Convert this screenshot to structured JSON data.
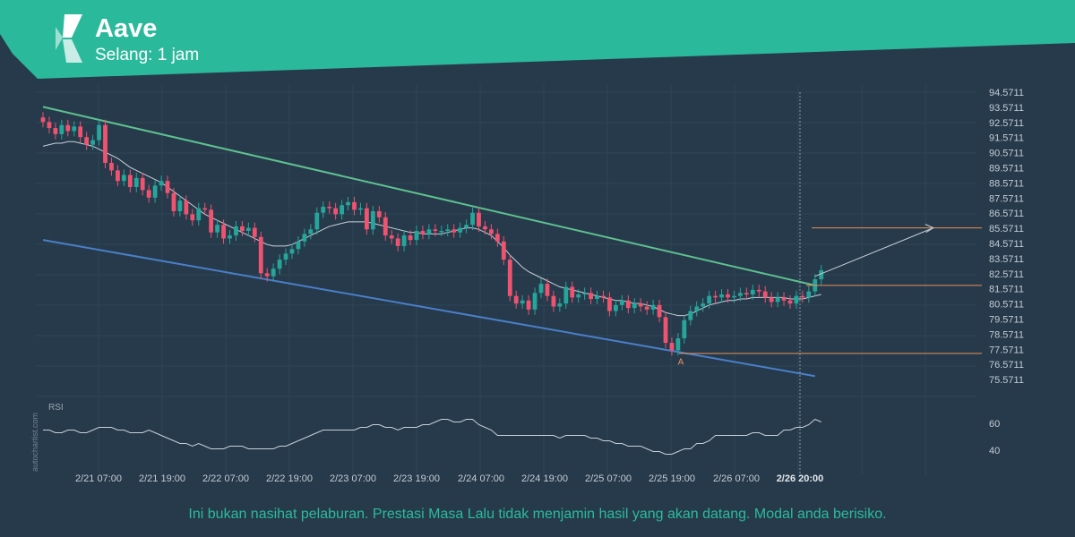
{
  "header": {
    "title": "Aave",
    "subtitle": "Selang: 1 jam",
    "accent_color": "#2bb99b",
    "logo_icon": "autochartist-logo-icon"
  },
  "disclaimer": "Ini bukan nasihat pelaburan. Prestasi Masa Lalu tidak menjamin hasil yang akan datang. Modal anda berisiko.",
  "watermark": "autochartist.com",
  "chart_data": {
    "type": "candlestick",
    "x_labels": [
      "2/21 07:00",
      "2/21 19:00",
      "2/22 07:00",
      "2/22 19:00",
      "2/23 07:00",
      "2/23 19:00",
      "2/24 07:00",
      "2/24 19:00",
      "2/25 07:00",
      "2/25 19:00",
      "2/26 07:00",
      "2/26 20:00"
    ],
    "y_ticks": [
      "94.5711",
      "93.5711",
      "92.5711",
      "91.5711",
      "90.5711",
      "89.5711",
      "88.5711",
      "87.5711",
      "86.5711",
      "85.5711",
      "84.5711",
      "83.5711",
      "82.5711",
      "81.5711",
      "80.5711",
      "79.5711",
      "78.5711",
      "77.5711",
      "76.5711",
      "75.5711"
    ],
    "ylim": [
      75.0,
      95.0
    ],
    "up_color": "#26a69a",
    "down_color": "#ef5370",
    "close": [
      92.6,
      92.2,
      91.8,
      92.4,
      92.0,
      92.3,
      91.6,
      91.1,
      91.4,
      92.4,
      89.9,
      89.4,
      88.7,
      89.1,
      88.3,
      88.9,
      88.1,
      87.6,
      88.4,
      88.7,
      87.9,
      86.7,
      87.4,
      86.5,
      86.1,
      86.9,
      86.8,
      85.3,
      85.8,
      84.9,
      85.1,
      85.7,
      85.4,
      85.6,
      85.0,
      82.6,
      82.4,
      82.9,
      83.5,
      83.9,
      84.2,
      84.7,
      85.2,
      85.5,
      86.6,
      87.0,
      86.9,
      86.5,
      87.1,
      87.3,
      86.8,
      86.9,
      85.5,
      86.7,
      86.3,
      85.1,
      84.9,
      84.4,
      85.1,
      84.8,
      85.4,
      85.2,
      85.5,
      85.4,
      85.4,
      85.5,
      85.3,
      85.6,
      85.8,
      86.6,
      85.7,
      85.5,
      85.2,
      84.7,
      83.5,
      81.1,
      80.6,
      80.8,
      80.2,
      81.3,
      81.9,
      81.1,
      80.4,
      80.6,
      81.7,
      81.0,
      81.2,
      81.3,
      80.9,
      81.1,
      81.0,
      80.1,
      80.5,
      80.8,
      80.3,
      80.6,
      80.4,
      80.2,
      80.5,
      79.7,
      78.0,
      77.5,
      78.3,
      79.5,
      80.1,
      80.4,
      80.6,
      81.1,
      81.0,
      81.2,
      81.0,
      81.1,
      81.3,
      81.2,
      81.5,
      81.4,
      81.0,
      80.7,
      81.0,
      80.8,
      80.6,
      81.1,
      81.0,
      81.4,
      82.2,
      82.8
    ],
    "sma": [
      91.0,
      91.1,
      91.2,
      91.2,
      91.3,
      91.3,
      91.2,
      91.1,
      91.0,
      90.8,
      90.6,
      90.4,
      90.2,
      89.9,
      89.6,
      89.4,
      89.2,
      89.0,
      88.8,
      88.6,
      88.3,
      88.0,
      87.7,
      87.4,
      87.1,
      86.8,
      86.5,
      86.3,
      86.1,
      85.9,
      85.7,
      85.5,
      85.3,
      85.1,
      84.9,
      84.7,
      84.5,
      84.4,
      84.4,
      84.4,
      84.5,
      84.7,
      84.9,
      85.1,
      85.3,
      85.5,
      85.7,
      85.8,
      85.9,
      86.0,
      86.0,
      86.0,
      86.0,
      85.9,
      85.8,
      85.7,
      85.6,
      85.5,
      85.4,
      85.3,
      85.3,
      85.2,
      85.2,
      85.2,
      85.2,
      85.3,
      85.4,
      85.5,
      85.6,
      85.6,
      85.5,
      85.3,
      85.1,
      84.7,
      84.3,
      83.8,
      83.4,
      83.0,
      82.7,
      82.5,
      82.3,
      82.1,
      81.9,
      81.7,
      81.6,
      81.5,
      81.4,
      81.3,
      81.2,
      81.1,
      81.0,
      80.9,
      80.8,
      80.8,
      80.7,
      80.6,
      80.6,
      80.5,
      80.4,
      80.2,
      80.0,
      79.9,
      79.8,
      79.8,
      79.9,
      80.1,
      80.3,
      80.5,
      80.6,
      80.7,
      80.8,
      80.8,
      80.9,
      80.9,
      81.0,
      81.0,
      81.0,
      81.0,
      81.0,
      81.0,
      80.9,
      80.9,
      80.9,
      81.0,
      81.1,
      81.2
    ],
    "resistance": {
      "from": [
        0,
        93.6
      ],
      "to": [
        124,
        81.8
      ]
    },
    "support": {
      "from": [
        0,
        84.8
      ],
      "to": [
        124,
        75.8
      ]
    },
    "levels": [
      {
        "value": 85.6,
        "color": "#e8915a"
      },
      {
        "value": 81.8,
        "color": "#e8915a"
      },
      {
        "value": 77.3,
        "color": "#e8915a"
      }
    ],
    "projection": {
      "from": [
        124,
        82.4
      ],
      "to": [
        143,
        85.6
      ]
    },
    "pattern_point_label": "A",
    "rsi": {
      "label": "RSI",
      "ticks": [
        "60",
        "40"
      ],
      "ylim": [
        30,
        70
      ],
      "values": [
        55,
        55,
        53,
        53,
        55,
        55,
        53,
        53,
        55,
        57,
        57,
        57,
        55,
        55,
        53,
        53,
        53,
        55,
        53,
        51,
        49,
        47,
        45,
        45,
        43,
        45,
        43,
        41,
        41,
        41,
        43,
        43,
        43,
        41,
        41,
        41,
        41,
        41,
        43,
        43,
        45,
        47,
        49,
        51,
        53,
        55,
        55,
        55,
        55,
        55,
        55,
        57,
        57,
        59,
        59,
        57,
        57,
        55,
        57,
        57,
        57,
        59,
        59,
        61,
        63,
        63,
        61,
        61,
        63,
        63,
        59,
        57,
        55,
        51,
        51,
        51,
        51,
        51,
        51,
        51,
        51,
        51,
        51,
        49,
        51,
        51,
        51,
        51,
        49,
        49,
        47,
        47,
        45,
        45,
        43,
        43,
        43,
        41,
        39,
        39,
        37,
        37,
        39,
        41,
        41,
        45,
        45,
        47,
        51,
        51,
        51,
        51,
        51,
        51,
        53,
        53,
        51,
        51,
        51,
        55,
        55,
        57,
        57,
        59,
        63,
        61
      ]
    }
  }
}
